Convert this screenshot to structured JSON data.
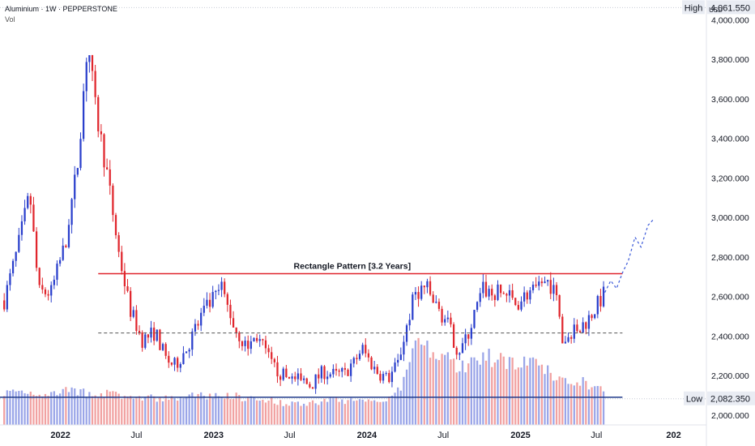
{
  "header": {
    "title": "Aluminium · 1W · PEPPERSTONE",
    "volume_label": "Vol",
    "currency": "USD"
  },
  "chart_data": {
    "type": "candlestick",
    "symbol": "Aluminium",
    "interval": "1W",
    "broker": "PEPPERSTONE",
    "currency": "USD",
    "ylim": [
      1950,
      4100
    ],
    "y_ticks": [
      {
        "value": 2000,
        "label": "2,000.000"
      },
      {
        "value": 2200,
        "label": "2,200.000"
      },
      {
        "value": 2400,
        "label": "2,400.000"
      },
      {
        "value": 2600,
        "label": "2,600.000"
      },
      {
        "value": 2800,
        "label": "2,800.000"
      },
      {
        "value": 3000,
        "label": "3,000.000"
      },
      {
        "value": 3200,
        "label": "3,200.000"
      },
      {
        "value": 3400,
        "label": "3,400.000"
      },
      {
        "value": 3600,
        "label": "3,600.000"
      },
      {
        "value": 3800,
        "label": "3,800.000"
      },
      {
        "value": 4000,
        "label": "4,000.000"
      }
    ],
    "x_ticks": [
      {
        "date": "2022-01-01",
        "label": "2022",
        "bold": true
      },
      {
        "date": "2022-07-01",
        "label": "Jul",
        "bold": false
      },
      {
        "date": "2023-01-01",
        "label": "2023",
        "bold": true
      },
      {
        "date": "2023-07-01",
        "label": "Jul",
        "bold": false
      },
      {
        "date": "2024-01-01",
        "label": "2024",
        "bold": true
      },
      {
        "date": "2024-07-01",
        "label": "Jul",
        "bold": false
      },
      {
        "date": "2025-01-01",
        "label": "2025",
        "bold": true
      },
      {
        "date": "2025-07-01",
        "label": "Jul",
        "bold": false
      },
      {
        "date": "2026-01-01",
        "label": "202",
        "bold": true
      }
    ],
    "x_range": [
      "2021-08-10",
      "2026-03-20"
    ],
    "high": {
      "label": "High",
      "value": 4061.55,
      "value_label": "4,061.550"
    },
    "low": {
      "label": "Low",
      "value": 2082.35,
      "value_label": "2,082.350"
    },
    "rectangle_pattern": {
      "label": "Rectangle Pattern [3.2 Years]",
      "top": 2715,
      "mid": 2415,
      "bottom": 2090,
      "start": "2022-04-01",
      "end": "2025-09-01"
    },
    "projection": [
      [
        "2025-07-21",
        2620
      ],
      [
        "2025-08-04",
        2680
      ],
      [
        "2025-08-18",
        2640
      ],
      [
        "2025-09-01",
        2720
      ],
      [
        "2025-09-15",
        2780
      ],
      [
        "2025-10-01",
        2900
      ],
      [
        "2025-10-15",
        2850
      ],
      [
        "2025-11-01",
        2960
      ],
      [
        "2025-11-14",
        2990
      ]
    ],
    "colors": {
      "up": "#2a3fcc",
      "down": "#e0262d",
      "vol_up": "#9aa5e8",
      "vol_down": "#f1a1a1",
      "resistance": "#e0262d",
      "support": "#1f3a8a",
      "projection": "#3d5bd9"
    },
    "anchors": [
      [
        "2021-08-20",
        2580,
        0.26
      ],
      [
        "2021-09-20",
        2830,
        0.28
      ],
      [
        "2021-10-20",
        3120,
        0.27
      ],
      [
        "2021-11-10",
        2620,
        0.26
      ],
      [
        "2021-12-10",
        2620,
        0.26
      ],
      [
        "2022-01-10",
        2850,
        0.27
      ],
      [
        "2022-02-10",
        3250,
        0.28
      ],
      [
        "2022-03-07",
        3900,
        0.26
      ],
      [
        "2022-03-25",
        3550,
        0.26
      ],
      [
        "2022-04-20",
        3250,
        0.26
      ],
      [
        "2022-05-20",
        2820,
        0.24
      ],
      [
        "2022-06-15",
        2540,
        0.22
      ],
      [
        "2022-07-15",
        2380,
        0.22
      ],
      [
        "2022-08-15",
        2420,
        0.22
      ],
      [
        "2022-09-10",
        2280,
        0.21
      ],
      [
        "2022-10-01",
        2250,
        0.22
      ],
      [
        "2022-11-01",
        2350,
        0.23
      ],
      [
        "2022-12-01",
        2500,
        0.24
      ],
      [
        "2023-01-20",
        2640,
        0.24
      ],
      [
        "2023-02-20",
        2440,
        0.24
      ],
      [
        "2023-03-20",
        2340,
        0.22
      ],
      [
        "2023-04-15",
        2400,
        0.22
      ],
      [
        "2023-05-20",
        2250,
        0.2
      ],
      [
        "2023-06-15",
        2200,
        0.18
      ],
      [
        "2023-07-15",
        2180,
        0.18
      ],
      [
        "2023-08-20",
        2150,
        0.18
      ],
      [
        "2023-09-20",
        2220,
        0.2
      ],
      [
        "2023-10-20",
        2200,
        0.2
      ],
      [
        "2023-11-20",
        2220,
        0.2
      ],
      [
        "2023-12-20",
        2340,
        0.2
      ],
      [
        "2024-01-20",
        2230,
        0.21
      ],
      [
        "2024-02-20",
        2180,
        0.22
      ],
      [
        "2024-03-15",
        2260,
        0.27
      ],
      [
        "2024-04-05",
        2450,
        0.42
      ],
      [
        "2024-04-25",
        2620,
        0.66
      ],
      [
        "2024-05-20",
        2650,
        0.62
      ],
      [
        "2024-06-10",
        2560,
        0.58
      ],
      [
        "2024-07-10",
        2470,
        0.55
      ],
      [
        "2024-08-05",
        2320,
        0.46
      ],
      [
        "2024-08-25",
        2380,
        0.5
      ],
      [
        "2024-09-15",
        2520,
        0.54
      ],
      [
        "2024-10-05",
        2640,
        0.56
      ],
      [
        "2024-10-25",
        2610,
        0.54
      ],
      [
        "2024-11-25",
        2620,
        0.54
      ],
      [
        "2024-12-20",
        2560,
        0.52
      ],
      [
        "2025-01-20",
        2620,
        0.5
      ],
      [
        "2025-02-20",
        2640,
        0.46
      ],
      [
        "2025-03-15",
        2660,
        0.42
      ],
      [
        "2025-04-01",
        2560,
        0.42
      ],
      [
        "2025-04-12",
        2360,
        0.4
      ],
      [
        "2025-05-10",
        2420,
        0.36
      ],
      [
        "2025-06-10",
        2480,
        0.34
      ],
      [
        "2025-07-10",
        2580,
        0.3
      ],
      [
        "2025-07-21",
        2620,
        0.28
      ]
    ]
  }
}
